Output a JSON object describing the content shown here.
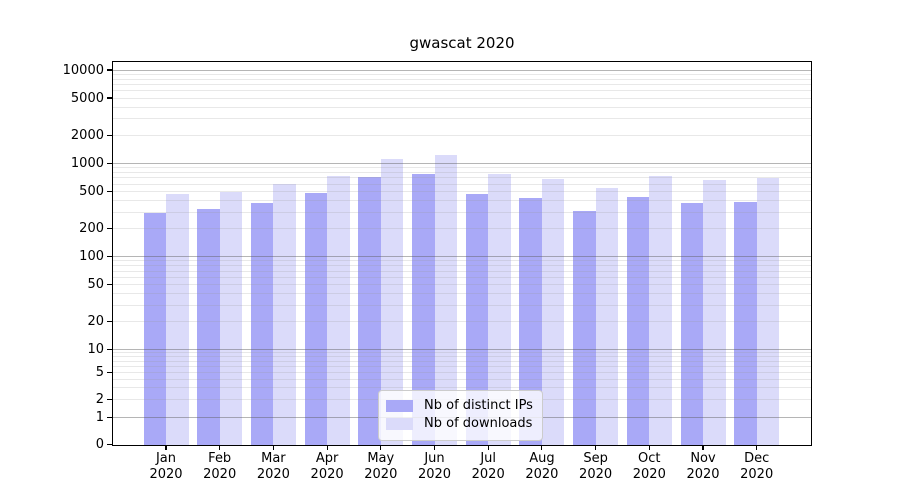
{
  "title": "gwascat 2020",
  "chart_data": {
    "type": "bar",
    "title": "gwascat 2020",
    "categories": [
      {
        "month": "Jan",
        "year": "2020"
      },
      {
        "month": "Feb",
        "year": "2020"
      },
      {
        "month": "Mar",
        "year": "2020"
      },
      {
        "month": "Apr",
        "year": "2020"
      },
      {
        "month": "May",
        "year": "2020"
      },
      {
        "month": "Jun",
        "year": "2020"
      },
      {
        "month": "Jul",
        "year": "2020"
      },
      {
        "month": "Aug",
        "year": "2020"
      },
      {
        "month": "Sep",
        "year": "2020"
      },
      {
        "month": "Oct",
        "year": "2020"
      },
      {
        "month": "Nov",
        "year": "2020"
      },
      {
        "month": "Dec",
        "year": "2020"
      }
    ],
    "series": [
      {
        "name": "Nb of distinct IPs",
        "color": "#a9a9f7",
        "values": [
          295,
          325,
          375,
          480,
          715,
          760,
          465,
          425,
          310,
          435,
          375,
          385
        ]
      },
      {
        "name": "Nb of downloads",
        "color": "#dbdbfa",
        "values": [
          470,
          495,
          595,
          735,
          1110,
          1230,
          775,
          680,
          540,
          730,
          660,
          700
        ]
      }
    ],
    "y_axis": {
      "scale": "log",
      "tick_labels": [
        "10000",
        "5000",
        "2000",
        "1000",
        "500",
        "200",
        "100",
        "50",
        "20",
        "10",
        "5",
        "2",
        "1",
        "0"
      ],
      "grid": true
    },
    "legend": {
      "location": "lower center",
      "entries": [
        "Nb of distinct IPs",
        "Nb of downloads"
      ]
    },
    "colors": {
      "major_grid": "#ababab",
      "minor_grid": "#dcdcdc",
      "spine": "#000000"
    }
  }
}
